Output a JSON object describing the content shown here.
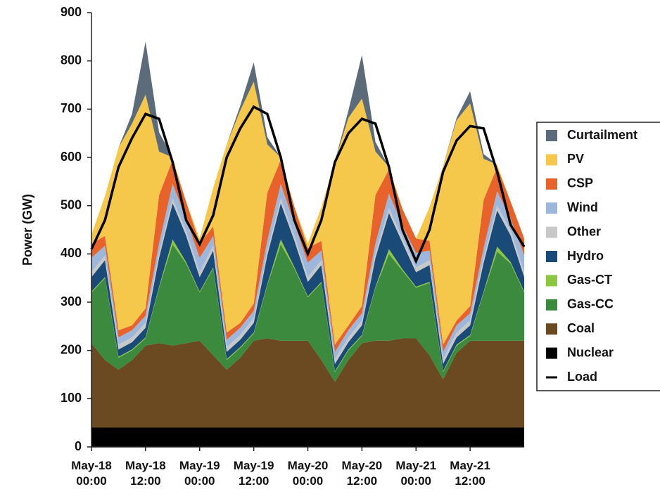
{
  "chart_data": {
    "type": "stacked-area",
    "y_label": "Power (GW)",
    "categories": [
      "May-18 00:00",
      null,
      null,
      null,
      "May-18 12:00",
      null,
      null,
      null,
      "May-19 00:00",
      null,
      null,
      null,
      "May-19 12:00",
      null,
      null,
      null,
      "May-20 00:00",
      null,
      null,
      null,
      "May-20 12:00",
      null,
      null,
      null,
      "May-21 00:00",
      null,
      null,
      null,
      "May-21 12:00",
      null,
      null,
      null,
      null
    ],
    "ylim": [
      0,
      900
    ],
    "yticks": [
      0,
      100,
      200,
      300,
      400,
      500,
      600,
      700,
      800,
      900
    ],
    "series": [
      {
        "name": "Nuclear",
        "color": "#000000",
        "values": [
          40,
          40,
          40,
          40,
          40,
          40,
          40,
          40,
          40,
          40,
          40,
          40,
          40,
          40,
          40,
          40,
          40,
          40,
          40,
          40,
          40,
          40,
          40,
          40,
          40,
          40,
          40,
          40,
          40,
          40,
          40,
          40,
          40
        ]
      },
      {
        "name": "Coal",
        "color": "#6b4a22",
        "values": [
          175,
          140,
          120,
          140,
          170,
          175,
          170,
          175,
          180,
          150,
          120,
          145,
          180,
          185,
          180,
          180,
          180,
          140,
          95,
          140,
          175,
          180,
          180,
          185,
          185,
          150,
          100,
          155,
          180,
          180,
          180,
          180,
          180
        ]
      },
      {
        "name": "Gas-CC",
        "color": "#3b8a3e",
        "values": [
          105,
          170,
          25,
          20,
          15,
          115,
          210,
          165,
          100,
          180,
          20,
          20,
          15,
          110,
          200,
          150,
          90,
          160,
          20,
          20,
          15,
          110,
          180,
          140,
          105,
          150,
          15,
          15,
          10,
          100,
          185,
          160,
          100
        ]
      },
      {
        "name": "Gas-CT",
        "color": "#8dc63f",
        "values": [
          2,
          2,
          2,
          2,
          2,
          2,
          10,
          3,
          2,
          2,
          2,
          2,
          2,
          2,
          10,
          3,
          2,
          2,
          2,
          2,
          2,
          2,
          10,
          3,
          2,
          2,
          2,
          2,
          2,
          2,
          10,
          3,
          2
        ]
      },
      {
        "name": "Hydro",
        "color": "#1a4a78",
        "values": [
          30,
          35,
          15,
          15,
          20,
          60,
          75,
          55,
          30,
          35,
          15,
          15,
          20,
          60,
          75,
          55,
          30,
          35,
          15,
          15,
          20,
          60,
          75,
          55,
          30,
          35,
          15,
          15,
          20,
          60,
          75,
          55,
          30
        ]
      },
      {
        "name": "Other",
        "color": "#c8c8c8",
        "values": [
          10,
          10,
          10,
          10,
          10,
          10,
          10,
          10,
          10,
          10,
          10,
          10,
          10,
          10,
          10,
          10,
          10,
          10,
          10,
          10,
          10,
          10,
          10,
          10,
          10,
          10,
          10,
          10,
          10,
          10,
          10,
          10,
          10
        ]
      },
      {
        "name": "Wind",
        "color": "#9db7dc",
        "values": [
          30,
          20,
          15,
          15,
          15,
          20,
          30,
          25,
          30,
          20,
          15,
          15,
          15,
          20,
          30,
          25,
          30,
          20,
          15,
          15,
          15,
          20,
          30,
          25,
          30,
          20,
          15,
          15,
          15,
          20,
          30,
          25,
          35
        ]
      },
      {
        "name": "CSP",
        "color": "#e8632b",
        "values": [
          30,
          20,
          15,
          10,
          15,
          100,
          50,
          35,
          30,
          20,
          15,
          10,
          15,
          100,
          50,
          35,
          30,
          20,
          15,
          10,
          15,
          100,
          50,
          35,
          30,
          20,
          15,
          10,
          15,
          100,
          50,
          35,
          35
        ]
      },
      {
        "name": "PV",
        "color": "#f5c74a",
        "values": [
          18,
          83,
          378,
          418,
          443,
          90,
          5,
          0,
          10,
          80,
          390,
          440,
          460,
          100,
          5,
          0,
          10,
          70,
          380,
          430,
          430,
          90,
          5,
          0,
          0,
          70,
          370,
          415,
          420,
          85,
          5,
          0,
          0
        ]
      },
      {
        "name": "Curtailment",
        "color": "#5b6b7a",
        "values": [
          0,
          0,
          0,
          20,
          110,
          40,
          0,
          0,
          0,
          0,
          0,
          10,
          40,
          15,
          0,
          0,
          0,
          0,
          0,
          15,
          90,
          20,
          0,
          0,
          0,
          0,
          0,
          5,
          25,
          10,
          0,
          0,
          0
        ]
      }
    ],
    "load": {
      "name": "Load",
      "color": "#000000",
      "values": [
        410,
        470,
        580,
        640,
        690,
        680,
        590,
        470,
        420,
        480,
        600,
        660,
        705,
        690,
        600,
        470,
        400,
        470,
        590,
        650,
        680,
        670,
        580,
        450,
        385,
        450,
        570,
        635,
        665,
        660,
        570,
        460,
        415
      ]
    }
  }
}
